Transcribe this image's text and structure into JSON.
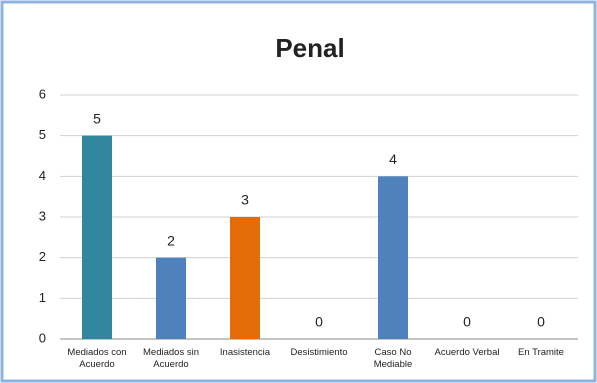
{
  "chart_data": {
    "type": "bar",
    "title": "Penal",
    "categories": [
      "Mediados con Acuerdo",
      "Mediados sin Acuerdo",
      "Inasistencia",
      "Desistimiento",
      "Caso No Mediable",
      "Acuerdo Verbal",
      "En Tramite"
    ],
    "values": [
      5,
      2,
      3,
      0,
      4,
      0,
      0
    ],
    "colors": [
      "#31859c",
      "#4f81bd",
      "#e36c09",
      "#4f81bd",
      "#4f81bd",
      "#4f81bd",
      "#4f81bd"
    ],
    "ylim": [
      0,
      6
    ],
    "yticks": [
      0,
      1,
      2,
      3,
      4,
      5,
      6
    ],
    "grid": true
  }
}
